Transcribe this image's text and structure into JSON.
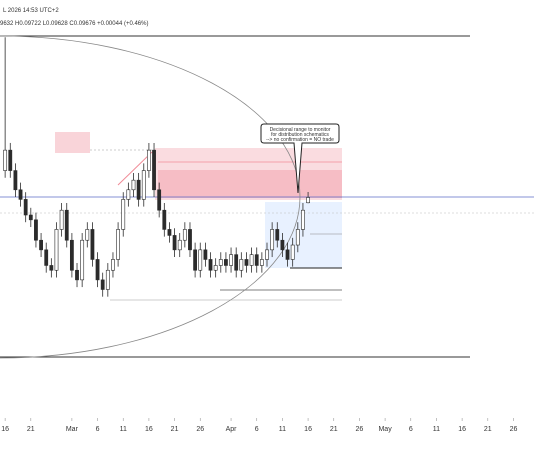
{
  "chart_data": {
    "type": "candlestick",
    "header": {
      "line1": "L 2026 14:53 UTC+2",
      "line2": "9632 H0.09722 L0.09628 C0.09676 +0.00044 (+0.46%)"
    },
    "annotation": [
      "Decisional range to monitor",
      "for distribution schematics",
      "--> no confirmation = NO trade"
    ],
    "color": "#2b2b2b",
    "xlim": [
      -1,
      103
    ],
    "xticks": [
      {
        "value": 0,
        "label": "16"
      },
      {
        "value": 5,
        "label": "21"
      },
      {
        "value": 13,
        "label": "Mar"
      },
      {
        "value": 18,
        "label": "6"
      },
      {
        "value": 23,
        "label": "11"
      },
      {
        "value": 28,
        "label": "16"
      },
      {
        "value": 33,
        "label": "21"
      },
      {
        "value": 38,
        "label": "26"
      },
      {
        "value": 44,
        "label": "Apr"
      },
      {
        "value": 49,
        "label": "6"
      },
      {
        "value": 54,
        "label": "11"
      },
      {
        "value": 59,
        "label": "16"
      },
      {
        "value": 64,
        "label": "21"
      },
      {
        "value": 69,
        "label": "26"
      },
      {
        "value": 74,
        "label": "May"
      },
      {
        "value": 79,
        "label": "6"
      },
      {
        "value": 84,
        "label": "11"
      },
      {
        "value": 89,
        "label": "16"
      },
      {
        "value": 94,
        "label": "21"
      },
      {
        "value": 99,
        "label": "26"
      }
    ],
    "ylim": [
      0.0789,
      0.1132
    ],
    "x": [
      0,
      1,
      2,
      3,
      4,
      5,
      6,
      7,
      8,
      9,
      10,
      11,
      12,
      13,
      14,
      15,
      16,
      17,
      18,
      19,
      20,
      21,
      22,
      23,
      24,
      25,
      26,
      27,
      28,
      29,
      30,
      31,
      32,
      33,
      34,
      35,
      36,
      37,
      38,
      39,
      40,
      41,
      42,
      43,
      44,
      45,
      46,
      47,
      48,
      49,
      50,
      51,
      52,
      53,
      54,
      55,
      56,
      57,
      58,
      59
    ],
    "open": [
      0.099,
      0.1007,
      0.099,
      0.0974,
      0.0966,
      0.0953,
      0.0949,
      0.0932,
      0.0924,
      0.0911,
      0.0907,
      0.0941,
      0.0957,
      0.0932,
      0.0907,
      0.0899,
      0.0932,
      0.0941,
      0.0916,
      0.0899,
      0.0891,
      0.0907,
      0.0916,
      0.0941,
      0.0966,
      0.0974,
      0.0982,
      0.0966,
      0.099,
      0.1007,
      0.0974,
      0.0957,
      0.0941,
      0.0936,
      0.0924,
      0.0932,
      0.0941,
      0.0924,
      0.0907,
      0.0924,
      0.0916,
      0.0907,
      0.0911,
      0.0916,
      0.0911,
      0.092,
      0.0907,
      0.0916,
      0.0911,
      0.092,
      0.0911,
      0.0916,
      0.0924,
      0.0941,
      0.0932,
      0.0924,
      0.0916,
      0.0928,
      0.0941,
      0.09632
    ],
    "high": [
      0.1101,
      0.1013,
      0.0996,
      0.098,
      0.0972,
      0.0959,
      0.0955,
      0.0938,
      0.093,
      0.0917,
      0.0947,
      0.0963,
      0.0963,
      0.0938,
      0.0913,
      0.0938,
      0.0947,
      0.0947,
      0.0922,
      0.0905,
      0.0913,
      0.0922,
      0.0947,
      0.0972,
      0.098,
      0.0988,
      0.0988,
      0.0996,
      0.1013,
      0.1013,
      0.098,
      0.0963,
      0.0947,
      0.0942,
      0.0938,
      0.0947,
      0.0947,
      0.093,
      0.093,
      0.093,
      0.0922,
      0.0917,
      0.0922,
      0.0922,
      0.0926,
      0.0926,
      0.0922,
      0.0922,
      0.0926,
      0.0926,
      0.0922,
      0.093,
      0.0947,
      0.0947,
      0.0938,
      0.093,
      0.0934,
      0.0947,
      0.0963,
      0.09722
    ],
    "low": [
      0.0984,
      0.0984,
      0.0968,
      0.096,
      0.0947,
      0.0943,
      0.0926,
      0.0918,
      0.0905,
      0.0901,
      0.0901,
      0.0935,
      0.0926,
      0.0901,
      0.0893,
      0.0893,
      0.0926,
      0.091,
      0.0893,
      0.0885,
      0.0885,
      0.0901,
      0.091,
      0.0935,
      0.096,
      0.0968,
      0.096,
      0.096,
      0.0984,
      0.0968,
      0.0951,
      0.0935,
      0.093,
      0.0918,
      0.0918,
      0.0926,
      0.0918,
      0.0901,
      0.0901,
      0.091,
      0.0901,
      0.0901,
      0.0905,
      0.0905,
      0.0905,
      0.0901,
      0.0901,
      0.0905,
      0.0905,
      0.0905,
      0.0905,
      0.091,
      0.0918,
      0.0926,
      0.0918,
      0.091,
      0.091,
      0.0922,
      0.0935,
      0.09628
    ],
    "close": [
      0.1007,
      0.099,
      0.0974,
      0.0966,
      0.0953,
      0.0949,
      0.0932,
      0.0924,
      0.0911,
      0.0907,
      0.0941,
      0.0957,
      0.0932,
      0.0907,
      0.0899,
      0.0932,
      0.0941,
      0.0916,
      0.0899,
      0.0891,
      0.0907,
      0.0916,
      0.0941,
      0.0966,
      0.0974,
      0.0982,
      0.0966,
      0.099,
      0.1007,
      0.0974,
      0.0957,
      0.0941,
      0.0936,
      0.0924,
      0.0932,
      0.0941,
      0.0924,
      0.0907,
      0.0924,
      0.0916,
      0.0907,
      0.0911,
      0.0916,
      0.0911,
      0.092,
      0.0907,
      0.0916,
      0.0911,
      0.092,
      0.0911,
      0.0916,
      0.0924,
      0.0941,
      0.0932,
      0.0924,
      0.0916,
      0.0928,
      0.0941,
      0.0957,
      0.09676
    ]
  }
}
